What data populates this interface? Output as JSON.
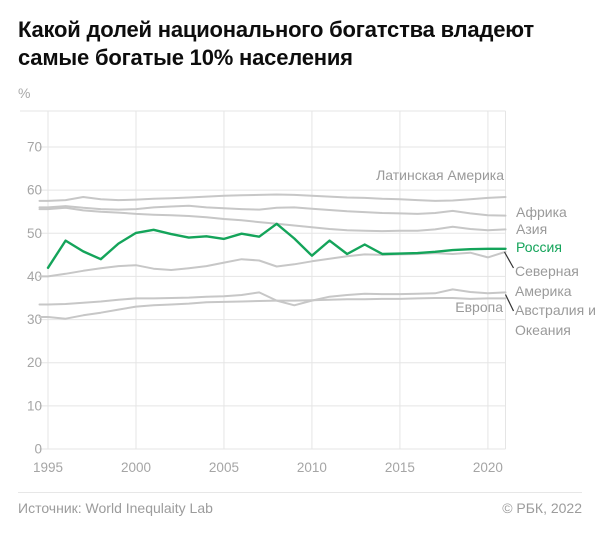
{
  "title": "Какой долей национального богатства владеют самые богатые 10% населения",
  "unit_label": "%",
  "footer": {
    "source": "Источник: World Inequlaity Lab",
    "copyright": "© РБК, 2022"
  },
  "colors": {
    "background": "#ffffff",
    "title_text": "#0d0d0d",
    "grid": "#e5e5e5",
    "axis_text": "#a5a5a5",
    "label_text": "#9a9a9a",
    "gray_line": "#c7c7c7",
    "accent_green": "#14a45a",
    "leader_line": "#333333"
  },
  "chart_data": {
    "type": "line",
    "title": "Какой долей национального богатства владеют самые богатые 10% населения",
    "xlabel": "",
    "ylabel": "%",
    "x_ticks": [
      1995,
      2000,
      2005,
      2010,
      2015,
      2020
    ],
    "y_ticks": [
      0,
      10,
      20,
      30,
      40,
      50,
      60,
      70
    ],
    "ylim": [
      0,
      78
    ],
    "xlim": [
      1995,
      2021
    ],
    "grid": true,
    "legend_position": "right-edge-labels",
    "x": [
      1995,
      1996,
      1997,
      1998,
      1999,
      2000,
      2001,
      2002,
      2003,
      2004,
      2005,
      2006,
      2007,
      2008,
      2009,
      2010,
      2011,
      2012,
      2013,
      2014,
      2015,
      2016,
      2017,
      2018,
      2019,
      2020,
      2021
    ],
    "series": [
      {
        "id": "latam",
        "name": "Латинская Америка",
        "color": "#c7c7c7",
        "values": [
          57.5,
          57.7,
          58.4,
          57.9,
          57.7,
          57.8,
          58.0,
          58.1,
          58.3,
          58.5,
          58.7,
          58.8,
          58.9,
          59.0,
          58.9,
          58.7,
          58.5,
          58.3,
          58.2,
          58.0,
          57.9,
          57.7,
          57.5,
          57.6,
          57.9,
          58.2,
          58.4
        ]
      },
      {
        "id": "africa",
        "name": "Африка",
        "color": "#c7c7c7",
        "values": [
          56.0,
          56.3,
          55.9,
          55.6,
          55.5,
          55.6,
          56.0,
          56.2,
          56.4,
          56.0,
          55.8,
          55.6,
          55.5,
          55.9,
          56.0,
          55.7,
          55.4,
          55.1,
          54.9,
          54.7,
          54.6,
          54.5,
          54.7,
          55.2,
          54.6,
          54.2,
          54.1
        ]
      },
      {
        "id": "asia",
        "name": "Азия",
        "color": "#c7c7c7",
        "values": [
          55.6,
          55.9,
          55.3,
          55.0,
          54.8,
          54.5,
          54.3,
          54.2,
          54.0,
          53.7,
          53.3,
          53.0,
          52.6,
          52.2,
          51.8,
          51.4,
          51.0,
          50.7,
          50.6,
          50.5,
          50.6,
          50.6,
          50.9,
          51.5,
          51.0,
          50.7,
          50.9
        ]
      },
      {
        "id": "russia",
        "name": "Россия",
        "color": "#14a45a",
        "values": [
          42.0,
          48.3,
          45.8,
          44.0,
          47.6,
          50.1,
          50.8,
          49.8,
          49.0,
          49.3,
          48.7,
          49.9,
          49.2,
          52.2,
          48.8,
          44.8,
          48.3,
          45.2,
          47.4,
          45.2,
          45.3,
          45.4,
          45.7,
          46.1,
          46.3,
          46.4,
          46.4
        ]
      },
      {
        "id": "na",
        "name": "Северная Америка",
        "color": "#c7c7c7",
        "values": [
          40.0,
          40.6,
          41.3,
          41.9,
          42.4,
          42.6,
          41.8,
          41.5,
          41.9,
          42.4,
          43.2,
          44.0,
          43.7,
          42.3,
          42.8,
          43.5,
          44.1,
          44.7,
          45.1,
          45.0,
          45.1,
          45.2,
          45.4,
          45.2,
          45.5,
          44.4,
          45.7
        ]
      },
      {
        "id": "europe",
        "name": "Европа",
        "color": "#c7c7c7",
        "values": [
          33.5,
          33.6,
          33.9,
          34.2,
          34.6,
          34.9,
          34.9,
          35.0,
          35.1,
          35.3,
          35.4,
          35.7,
          36.3,
          34.4,
          33.3,
          34.4,
          35.3,
          35.7,
          36.0,
          35.9,
          35.9,
          36.0,
          36.1,
          37.0,
          36.4,
          36.1,
          36.3
        ]
      },
      {
        "id": "oceania",
        "name": "Австралия и Океания",
        "color": "#c7c7c7",
        "values": [
          30.6,
          30.2,
          31.0,
          31.6,
          32.3,
          33.0,
          33.3,
          33.5,
          33.7,
          34.0,
          34.1,
          34.2,
          34.3,
          34.4,
          34.4,
          34.5,
          34.6,
          34.7,
          34.7,
          34.8,
          34.8,
          34.9,
          35.0,
          35.0,
          34.8,
          34.9,
          34.9
        ]
      }
    ]
  }
}
